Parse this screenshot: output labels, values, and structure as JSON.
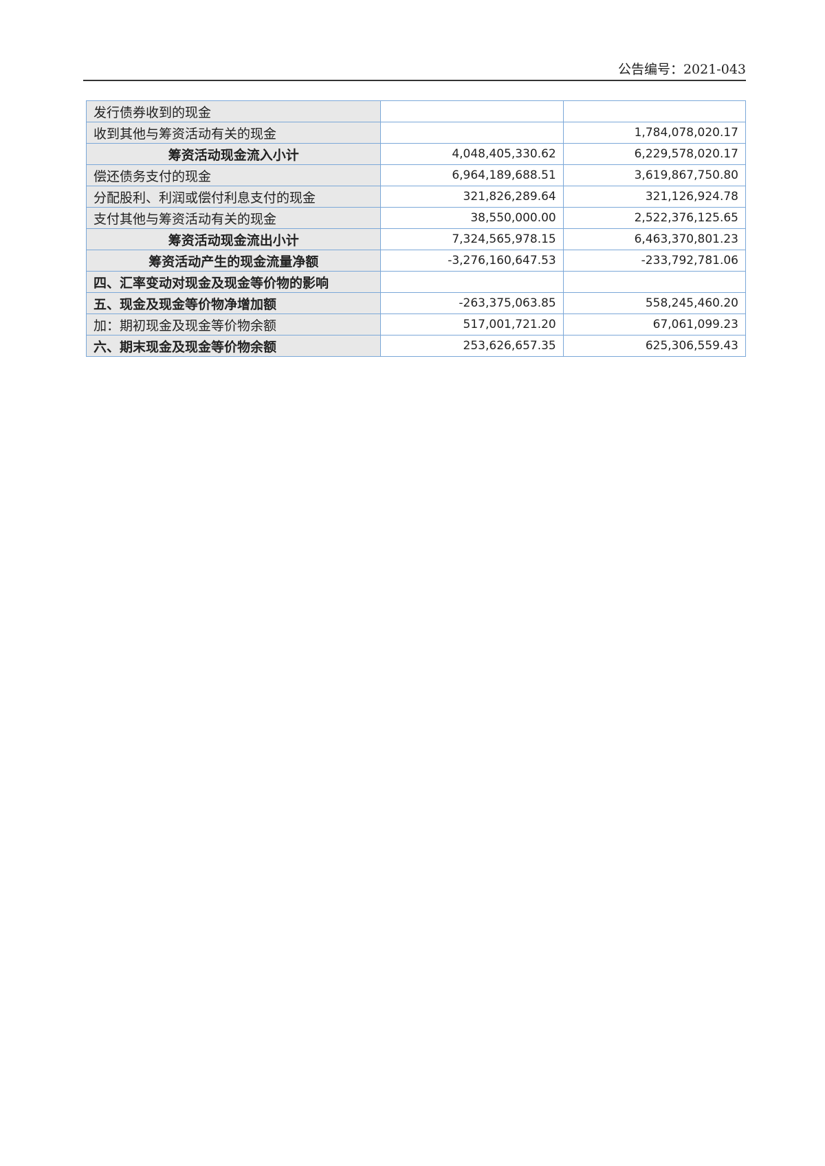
{
  "header": {
    "doc_number": "公告编号：2021-043"
  },
  "table": {
    "rows": [
      [
        "发行债券收到的现金",
        null,
        null
      ],
      [
        "收到其他与筹资活动有关的现金",
        null,
        "1,784,078,020.17"
      ],
      [
        "筹资活动现金流入小计",
        "4,048,405,330.62",
        "6,229,578,020.17"
      ],
      [
        "偿还债务支付的现金",
        "6,964,189,688.51",
        "3,619,867,750.80"
      ],
      [
        "分配股利、利润或偿付利息支付的现金",
        "321,826,289.64",
        "321,126,924.78"
      ],
      [
        "支付其他与筹资活动有关的现金",
        "38,550,000.00",
        "2,522,376,125.65"
      ],
      [
        "筹资活动现金流出小计",
        "7,324,565,978.15",
        "6,463,370,801.23"
      ],
      [
        "筹资活动产生的现金流量净额",
        "-3,276,160,647.53",
        "-233,792,781.06"
      ],
      [
        "四、汇率变动对现金及现金等价物的影响",
        null,
        null
      ],
      [
        "五、现金及现金等价物净增加额",
        "-263,375,063.85",
        "558,245,460.20"
      ],
      [
        "加：期初现金及现金等价物余额",
        "517,001,721.20",
        "67,061,099.23"
      ],
      [
        "六、期末现金及现金等价物余额",
        "253,626,657.35",
        "625,306,559.43"
      ]
    ]
  }
}
